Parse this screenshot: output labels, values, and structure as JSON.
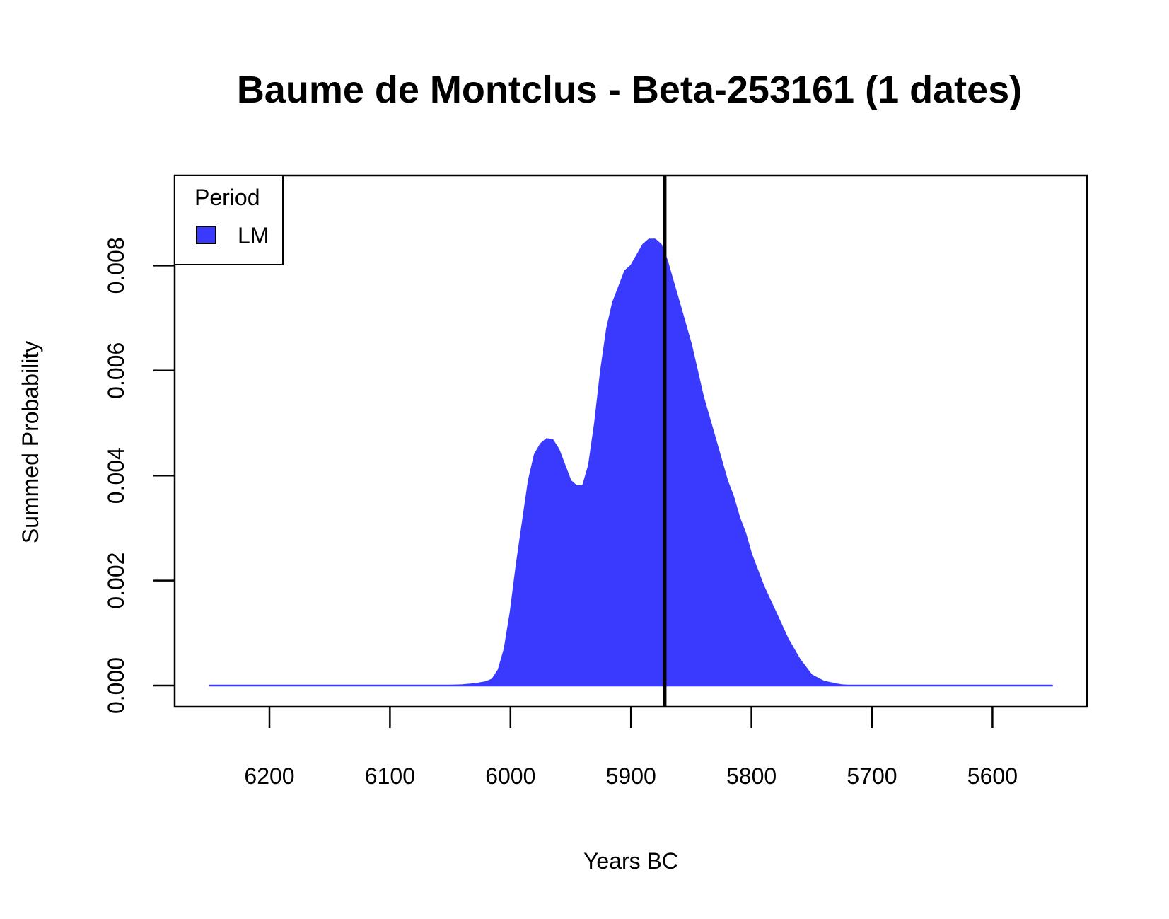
{
  "chart_data": {
    "type": "area",
    "title": "Baume de Montclus - Beta-253161 (1 dates)",
    "xlabel": "Years BC",
    "ylabel": "Summed Probability",
    "xlim": [
      6250,
      5550
    ],
    "ylim": [
      0,
      0.0094
    ],
    "x_reversed": true,
    "x_ticks": [
      6200,
      6100,
      6000,
      5900,
      5800,
      5700,
      5600
    ],
    "x_tick_labels": [
      "6200",
      "6100",
      "6000",
      "5900",
      "5800",
      "5700",
      "5600"
    ],
    "y_ticks": [
      0,
      0.002,
      0.004,
      0.006,
      0.008
    ],
    "y_tick_labels": [
      "0.000",
      "0.002",
      "0.004",
      "0.006",
      "0.008"
    ],
    "legend": {
      "title": "Period",
      "position": "top-left",
      "entries": [
        {
          "label": "LM",
          "color": "#3a3aff"
        }
      ]
    },
    "series": [
      {
        "name": "LM",
        "color": "#3a3aff",
        "x": [
          6250,
          6050,
          6040,
          6030,
          6020,
          6015,
          6010,
          6005,
          6000,
          5995,
          5990,
          5985,
          5980,
          5975,
          5970,
          5965,
          5960,
          5955,
          5950,
          5945,
          5940,
          5935,
          5930,
          5925,
          5920,
          5915,
          5910,
          5905,
          5900,
          5895,
          5890,
          5885,
          5880,
          5875,
          5870,
          5865,
          5860,
          5855,
          5850,
          5845,
          5840,
          5835,
          5830,
          5825,
          5820,
          5815,
          5810,
          5805,
          5800,
          5790,
          5780,
          5770,
          5760,
          5750,
          5740,
          5730,
          5725,
          5720,
          5715,
          5710,
          5705,
          5700,
          5550
        ],
        "values": [
          0,
          0,
          1e-05,
          3e-05,
          7e-05,
          0.00012,
          0.0003,
          0.0007,
          0.0014,
          0.0023,
          0.0031,
          0.0039,
          0.0044,
          0.0046,
          0.0047,
          0.00468,
          0.0045,
          0.0042,
          0.0039,
          0.0038,
          0.0038,
          0.0042,
          0.005,
          0.006,
          0.0068,
          0.0073,
          0.0076,
          0.0079,
          0.008,
          0.0082,
          0.0084,
          0.0085,
          0.0085,
          0.0084,
          0.0081,
          0.0077,
          0.0073,
          0.0069,
          0.0065,
          0.006,
          0.0055,
          0.0051,
          0.0047,
          0.0043,
          0.0039,
          0.0036,
          0.0032,
          0.0029,
          0.0025,
          0.0019,
          0.0014,
          0.0009,
          0.0005,
          0.0002,
          8e-05,
          3e-05,
          1e-05,
          0,
          0,
          0,
          0,
          0,
          0
        ]
      }
    ],
    "vertical_line_x": 5872
  }
}
